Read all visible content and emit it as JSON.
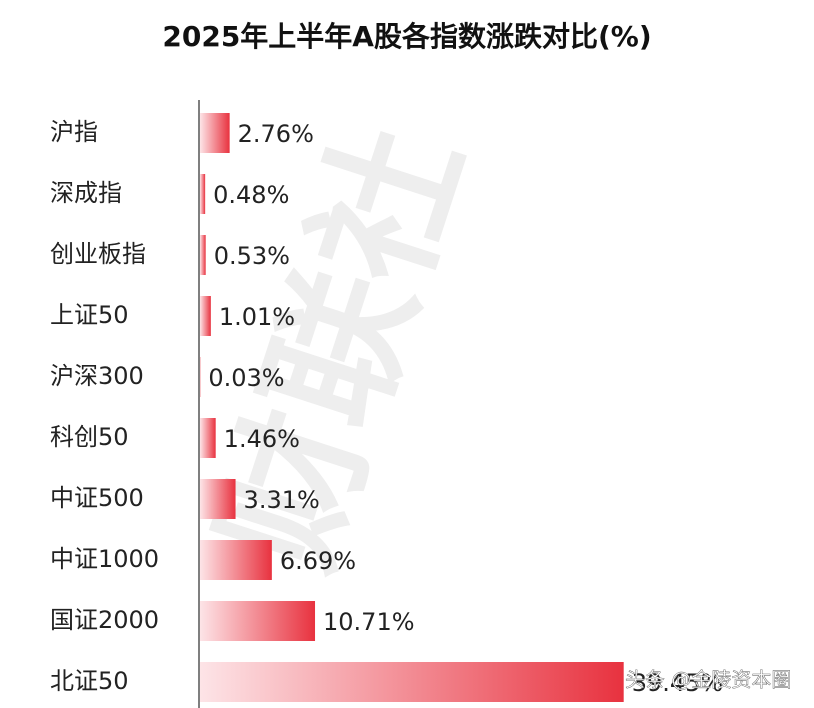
{
  "chart_data": {
    "type": "bar",
    "orientation": "horizontal",
    "title": "2025年上半年A股各指数涨跌对比(%)",
    "categories": [
      "沪指",
      "深成指",
      "创业板指",
      "上证50",
      "沪深300",
      "科创50",
      "中证500",
      "中证1000",
      "国证2000",
      "北证50"
    ],
    "values": [
      2.76,
      0.48,
      0.53,
      1.01,
      0.03,
      1.46,
      3.31,
      6.69,
      10.71,
      39.45
    ],
    "value_labels": [
      "2.76%",
      "0.48%",
      "0.53%",
      "1.01%",
      "0.03%",
      "1.46%",
      "3.31%",
      "6.69%",
      "10.71%",
      "39.45%"
    ],
    "color": "#e8323f",
    "watermarks": [
      "财联社",
      "头条 @金陵资本圈"
    ]
  }
}
